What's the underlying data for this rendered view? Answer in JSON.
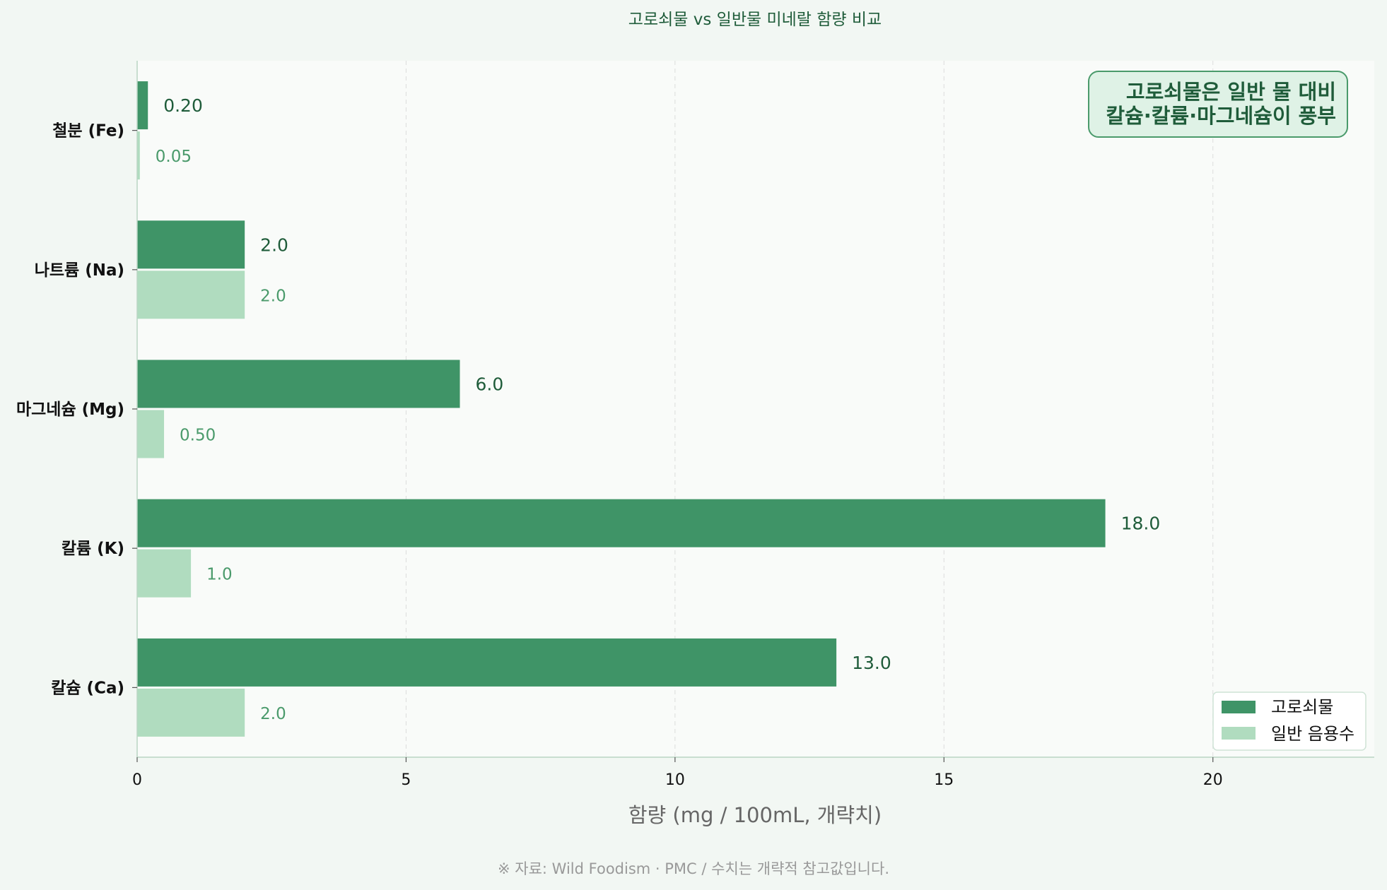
{
  "chart_data": {
    "type": "bar",
    "orientation": "horizontal",
    "title": "고로쇠물 vs 일반물  미네랄 함량 비교",
    "xlabel": "함량 (mg / 100mL, 개략치)",
    "ylabel": "",
    "xlim": [
      0,
      23
    ],
    "xticks": [
      "0",
      "5",
      "10",
      "15",
      "20"
    ],
    "grid": "vertical dashed",
    "legend_position": "bottom-right",
    "categories": [
      "철분 (Fe)",
      "나트륨 (Na)",
      "마그네슘 (Mg)",
      "칼륨 (K)",
      "칼슘 (Ca)"
    ],
    "series": [
      {
        "name": "고로쇠물",
        "color": "#3f9467",
        "values": [
          0.2,
          2.0,
          6.0,
          18.0,
          13.0
        ],
        "labels": [
          "0.20",
          "2.0",
          "6.0",
          "18.0",
          "13.0"
        ]
      },
      {
        "name": "일반 음용수",
        "color": "#b0dcbf",
        "values": [
          0.05,
          2.0,
          0.5,
          1.0,
          2.0
        ],
        "labels": [
          "0.05",
          "2.0",
          "0.50",
          "1.0",
          "2.0"
        ]
      }
    ],
    "annotation": {
      "lines": [
        "고로쇠물은 일반 물 대비",
        "칼슘·칼륨·마그네슘이 풍부"
      ],
      "position": "top-right"
    }
  },
  "footer": "※ 자료: Wild Foodism · PMC  /  수치는 개략적 참고값입니다."
}
